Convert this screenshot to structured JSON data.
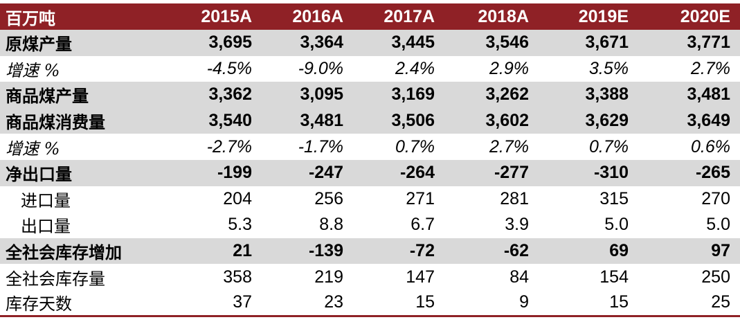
{
  "table": {
    "header": [
      "百万吨",
      "2015A",
      "2016A",
      "2017A",
      "2018A",
      "2019E",
      "2020E"
    ],
    "rows": [
      {
        "label": "原煤产量",
        "values": [
          "3,695",
          "3,364",
          "3,445",
          "3,546",
          "3,671",
          "3,771"
        ]
      },
      {
        "label": "增速 %",
        "values": [
          "-4.5%",
          "-9.0%",
          "2.4%",
          "2.9%",
          "3.5%",
          "2.7%"
        ]
      },
      {
        "label": "商品煤产量",
        "values": [
          "3,362",
          "3,095",
          "3,169",
          "3,262",
          "3,388",
          "3,481"
        ]
      },
      {
        "label": "商品煤消费量",
        "values": [
          "3,540",
          "3,481",
          "3,506",
          "3,602",
          "3,629",
          "3,649"
        ]
      },
      {
        "label": "增速 %",
        "values": [
          "-2.7%",
          "-1.7%",
          "0.7%",
          "2.7%",
          "0.7%",
          "0.6%"
        ]
      },
      {
        "label": "净出口量",
        "values": [
          "-199",
          "-247",
          "-264",
          "-277",
          "-310",
          "-265"
        ]
      },
      {
        "label": "进口量",
        "values": [
          "204",
          "256",
          "271",
          "281",
          "315",
          "270"
        ]
      },
      {
        "label": "出口量",
        "values": [
          "5.3",
          "8.8",
          "6.7",
          "3.9",
          "5.0",
          "5.0"
        ]
      },
      {
        "label": "全社会库存增加",
        "values": [
          "21",
          "-139",
          "-72",
          "-62",
          "69",
          "97"
        ]
      },
      {
        "label": "全社会库存量",
        "values": [
          "358",
          "219",
          "147",
          "84",
          "154",
          "250"
        ]
      },
      {
        "label": "库存天数",
        "values": [
          "37",
          "23",
          "15",
          "9",
          "15",
          "25"
        ]
      }
    ]
  },
  "colors": {
    "header_bg": "#8f2126",
    "header_text": "#ffffff",
    "row_shade": "#d9d9d9"
  }
}
